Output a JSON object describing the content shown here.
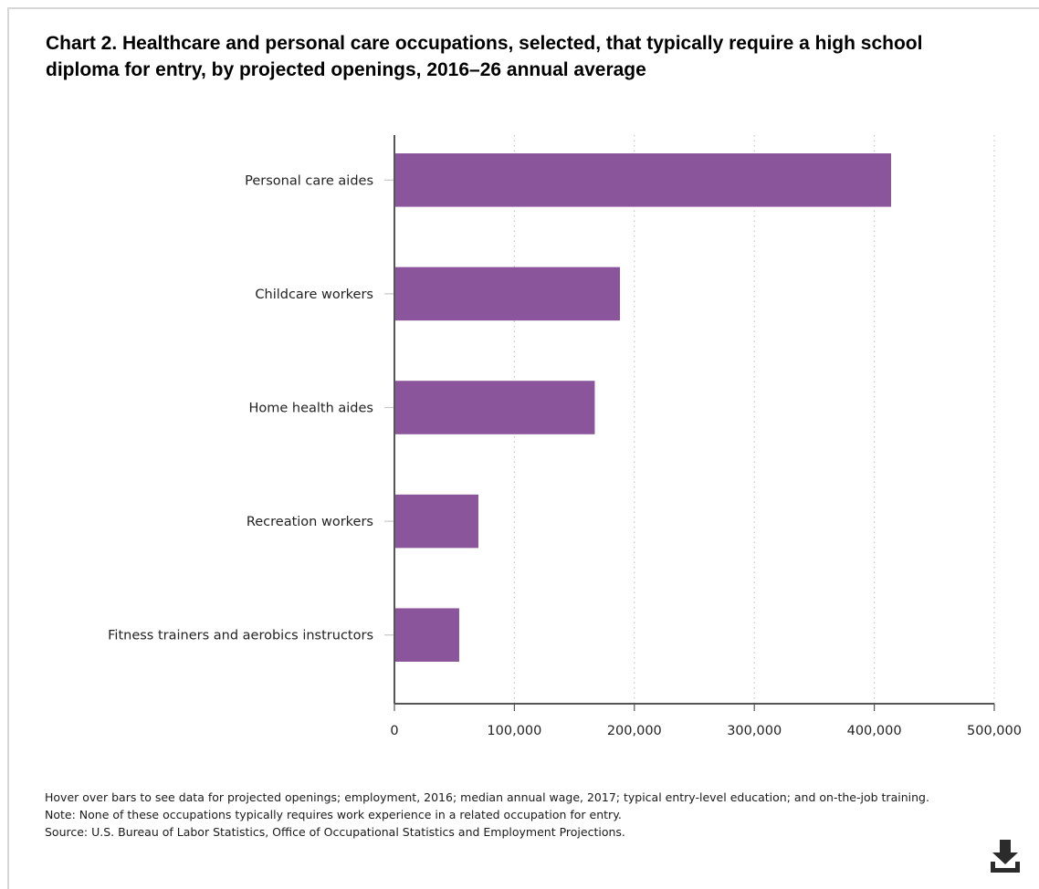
{
  "title": "Chart 2. Healthcare and personal care occupations, selected, that typically require a high school diploma for entry, by projected openings, 2016–26 annual average",
  "colors": {
    "bar": "#8b559b",
    "axis": "#555555",
    "grid": "#c8c8c8",
    "text": "#222222"
  },
  "chart_data": {
    "type": "bar",
    "orientation": "horizontal",
    "title": "Chart 2. Healthcare and personal care occupations, selected, that typically require a high school diploma for entry, by projected openings, 2016–26 annual average",
    "xlabel": "",
    "ylabel": "",
    "categories": [
      "Personal care aides",
      "Childcare workers",
      "Home health aides",
      "Recreation workers",
      "Fitness trainers and aerobics instructors"
    ],
    "values": [
      414000,
      188000,
      167000,
      70000,
      54000
    ],
    "xlim": [
      0,
      500000
    ],
    "x_ticks": [
      0,
      100000,
      200000,
      300000,
      400000,
      500000
    ],
    "x_tick_labels": [
      "0",
      "100,000",
      "200,000",
      "300,000",
      "400,000",
      "500,000"
    ],
    "grid": "vertical dotted",
    "legend": "none"
  },
  "notes": [
    "Hover over bars to see data for projected openings; employment, 2016; median annual wage, 2017; typical entry-level education; and on-the-job training.",
    "Note: None of these occupations typically requires work experience in a related occupation for entry.",
    "Source: U.S. Bureau of Labor Statistics, Office of Occupational Statistics and Employment Projections."
  ],
  "download_icon": "download-icon"
}
